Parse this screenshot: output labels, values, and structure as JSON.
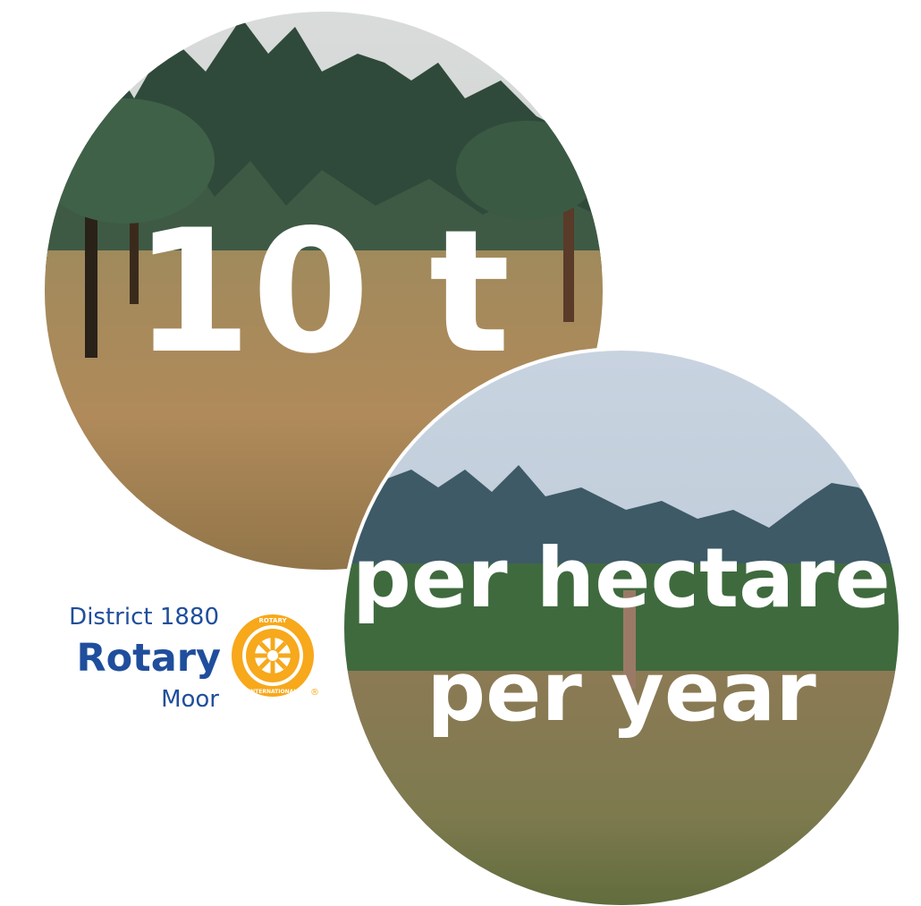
{
  "circle_top": {
    "text": "10 t"
  },
  "circle_bottom": {
    "lines": [
      "per hectare",
      "per year"
    ]
  },
  "logo": {
    "district": "District 1880",
    "name": "Rotary",
    "subtitle": "Moor",
    "emblem_top": "ROTARY",
    "emblem_bottom": "INTERNATIONAL",
    "mark": "®"
  }
}
